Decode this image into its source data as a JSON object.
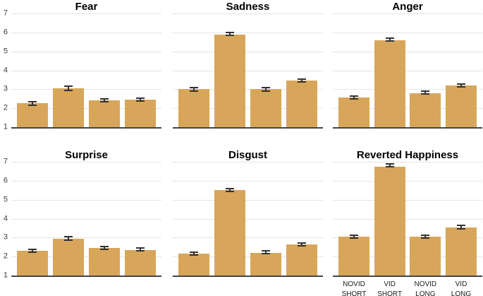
{
  "colors": {
    "bar_fill": "#D8A65A",
    "error_bar": "#333333",
    "gridline": "#E4E4E4",
    "axis_line": "#444444",
    "background": "#FFFFFF",
    "tick_label": "#3D3D3D"
  },
  "chart_data": [
    {
      "type": "bar",
      "title": "Fear",
      "categories": [
        "NOVID SHORT",
        "VID SHORT",
        "NOVID LONG",
        "VID LONG"
      ],
      "values": [
        2.25,
        3.05,
        2.4,
        2.45
      ],
      "errors": [
        0.12,
        0.15,
        0.1,
        0.12
      ],
      "ylim": [
        1,
        7
      ],
      "yticks": [
        1,
        2,
        3,
        4,
        5,
        6,
        7
      ],
      "grid": true,
      "show_y_labels": true,
      "show_x_labels": false
    },
    {
      "type": "bar",
      "title": "Sadness",
      "categories": [
        "NOVID SHORT",
        "VID SHORT",
        "NOVID LONG",
        "VID LONG"
      ],
      "values": [
        3.0,
        5.9,
        3.0,
        3.45
      ],
      "errors": [
        0.12,
        0.08,
        0.13,
        0.12
      ],
      "ylim": [
        1,
        7
      ],
      "yticks": [
        1,
        2,
        3,
        4,
        5,
        6,
        7
      ],
      "grid": true,
      "show_y_labels": false,
      "show_x_labels": false
    },
    {
      "type": "bar",
      "title": "Anger",
      "categories": [
        "NOVID SHORT",
        "VID SHORT",
        "NOVID LONG",
        "VID LONG"
      ],
      "values": [
        2.55,
        5.6,
        2.8,
        3.2
      ],
      "errors": [
        0.1,
        0.1,
        0.1,
        0.12
      ],
      "ylim": [
        1,
        7
      ],
      "yticks": [
        1,
        2,
        3,
        4,
        5,
        6,
        7
      ],
      "grid": true,
      "show_y_labels": false,
      "show_x_labels": false
    },
    {
      "type": "bar",
      "title": "Surprise",
      "categories": [
        "NOVID SHORT",
        "VID SHORT",
        "NOVID LONG",
        "VID LONG"
      ],
      "values": [
        2.3,
        2.95,
        2.45,
        2.35
      ],
      "errors": [
        0.1,
        0.13,
        0.1,
        0.1
      ],
      "ylim": [
        1,
        7
      ],
      "yticks": [
        1,
        2,
        3,
        4,
        5,
        6,
        7
      ],
      "grid": true,
      "show_y_labels": true,
      "show_x_labels": false
    },
    {
      "type": "bar",
      "title": "Disgust",
      "categories": [
        "NOVID SHORT",
        "VID SHORT",
        "NOVID LONG",
        "VID LONG"
      ],
      "values": [
        2.15,
        5.5,
        2.2,
        2.65
      ],
      "errors": [
        0.1,
        0.1,
        0.1,
        0.12
      ],
      "ylim": [
        1,
        7
      ],
      "yticks": [
        1,
        2,
        3,
        4,
        5,
        6,
        7
      ],
      "grid": true,
      "show_y_labels": false,
      "show_x_labels": false
    },
    {
      "type": "bar",
      "title": "Reverted Happiness",
      "categories": [
        "NOVID SHORT",
        "VID SHORT",
        "NOVID LONG",
        "VID LONG"
      ],
      "values": [
        3.05,
        6.75,
        3.05,
        3.55
      ],
      "errors": [
        0.12,
        0.05,
        0.12,
        0.12
      ],
      "ylim": [
        1,
        7
      ],
      "yticks": [
        1,
        2,
        3,
        4,
        5,
        6,
        7
      ],
      "grid": true,
      "show_y_labels": false,
      "show_x_labels": true
    }
  ]
}
